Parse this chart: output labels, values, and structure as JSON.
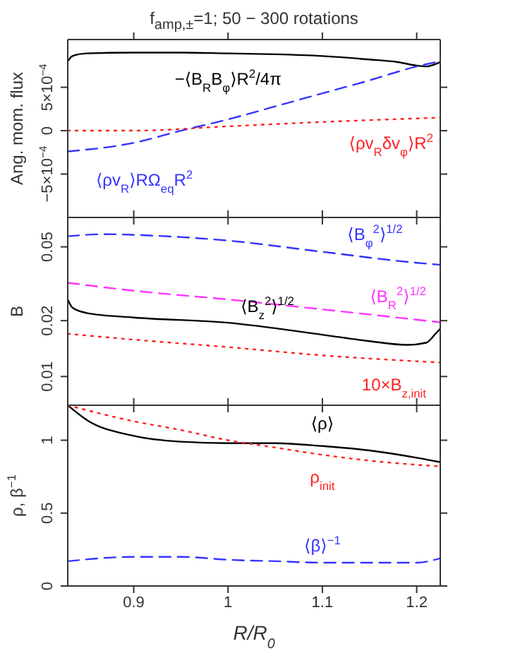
{
  "chart_data": [
    {
      "type": "line",
      "title": "f$_{amp,±}$=1; 50 − 300 rotations",
      "ylabel": "Ang. mom. flux",
      "xlim": [
        0.83,
        1.225
      ],
      "xticks": [
        0.9,
        1,
        1.1,
        1.2
      ],
      "ylim": [
        -0.001,
        0.00105
      ],
      "yticks": [
        {
          "value": -0.0005,
          "label": "−5×10$^{−4}$"
        },
        0,
        {
          "value": 0.0005,
          "label": "5×10$^{−4}$"
        }
      ],
      "tick_labels": "y",
      "series": [
        {
          "name": "−⟨B$_{R}$B$_{φ}$⟩R$^{2}$/4π",
          "color": "#000000",
          "line_style": "solid",
          "x": [
            0.83,
            0.835,
            0.85,
            0.9,
            0.95,
            1.0,
            1.05,
            1.1,
            1.15,
            1.18,
            1.2,
            1.21,
            1.225
          ],
          "values": [
            0.0008,
            0.00086,
            0.00089,
            0.0009,
            0.0009,
            0.00089,
            0.00088,
            0.00086,
            0.00082,
            0.00079,
            0.00075,
            0.00074,
            0.00079
          ]
        },
        {
          "name": "⟨ρv$_{R}$⟩RΩ$_{eq}$R$^{2}$",
          "color": "#3333ff",
          "line_style": "dashed",
          "x": [
            0.83,
            0.9,
            0.95,
            1.0,
            1.05,
            1.1,
            1.15,
            1.2,
            1.225
          ],
          "values": [
            -0.00024,
            -0.00014,
            0,
            0.00013,
            0.00028,
            0.00043,
            0.00058,
            0.00074,
            0.0008
          ]
        },
        {
          "name": "⟨ρv$_{R}$δv$_{φ}$⟩R$^{2}$",
          "color": "#ff2020",
          "line_style": "dotted",
          "x": [
            0.83,
            0.9,
            1.0,
            1.1,
            1.225
          ],
          "values": [
            0,
            0,
            5e-05,
            0.0001,
            0.00015
          ]
        }
      ]
    },
    {
      "type": "line",
      "ylabel": "B",
      "log": "y",
      "xlim": [
        0.83,
        1.225
      ],
      "xticks": [
        0.9,
        1,
        1.1,
        1.2
      ],
      "ylim": [
        0.007,
        0.072
      ],
      "yticks": [
        0.01,
        0.02,
        0.05
      ],
      "tick_labels": "y",
      "series": [
        {
          "name": "⟨B$_{φ}$$^{2}$⟩$^{1/2}$",
          "color": "#3333ff",
          "line_style": "dashed",
          "x": [
            0.83,
            0.87,
            0.9,
            1.0,
            1.1,
            1.2,
            1.225
          ],
          "values": [
            0.057,
            0.0585,
            0.058,
            0.054,
            0.047,
            0.041,
            0.04
          ]
        },
        {
          "name": "⟨B$_{R}$$^{2}$⟩$^{1/2}$",
          "color": "#ff33ff",
          "line_style": "dashed",
          "x": [
            0.83,
            0.9,
            1.0,
            1.1,
            1.225
          ],
          "values": [
            0.032,
            0.029,
            0.026,
            0.023,
            0.0196
          ]
        },
        {
          "name": "⟨B$_{z}$$^{2}$⟩$^{1/2}$",
          "color": "#000000",
          "line_style": "solid",
          "x": [
            0.83,
            0.835,
            0.85,
            0.9,
            1.0,
            1.1,
            1.15,
            1.19,
            1.21,
            1.22,
            1.225
          ],
          "values": [
            0.026,
            0.0235,
            0.022,
            0.0208,
            0.0195,
            0.0168,
            0.0155,
            0.0148,
            0.0152,
            0.017,
            0.0181
          ]
        },
        {
          "name": "10×B$_{z,init}$",
          "color": "#ff2020",
          "line_style": "dotted",
          "x": [
            0.83,
            0.9,
            1.0,
            1.1,
            1.225
          ],
          "values": [
            0.017,
            0.0158,
            0.0144,
            0.013,
            0.0119
          ]
        }
      ]
    },
    {
      "type": "line",
      "ylabel": "ρ, β$^{−1}$",
      "xlabel": "R/R$_{0}$",
      "xlim": [
        0.83,
        1.225
      ],
      "xticks": [
        0.9,
        1,
        1.1,
        1.2
      ],
      "ylim": [
        0,
        1.24
      ],
      "yticks": [
        0,
        0.5,
        1
      ],
      "series": [
        {
          "name": "⟨ρ⟩",
          "color": "#000000",
          "line_style": "solid",
          "x": [
            0.83,
            0.85,
            0.9,
            0.95,
            1.0,
            1.05,
            1.1,
            1.15,
            1.2,
            1.225
          ],
          "values": [
            1.24,
            1.14,
            1.03,
            0.99,
            0.98,
            0.98,
            0.96,
            0.93,
            0.88,
            0.85
          ]
        },
        {
          "name": "ρ$_{init}$",
          "color": "#ff2020",
          "line_style": "dotted",
          "x": [
            0.83,
            0.9,
            0.95,
            1.0,
            1.05,
            1.1,
            1.15,
            1.225
          ],
          "values": [
            1.24,
            1.13,
            1.07,
            1.0,
            0.95,
            0.9,
            0.86,
            0.82
          ]
        },
        {
          "name": "⟨β⟩$^{−1}$",
          "color": "#3333ff",
          "line_style": "dashed",
          "x": [
            0.83,
            0.9,
            0.95,
            1.0,
            1.05,
            1.1,
            1.2,
            1.225
          ],
          "values": [
            0.17,
            0.2,
            0.2,
            0.18,
            0.17,
            0.16,
            0.16,
            0.19
          ]
        }
      ]
    }
  ]
}
